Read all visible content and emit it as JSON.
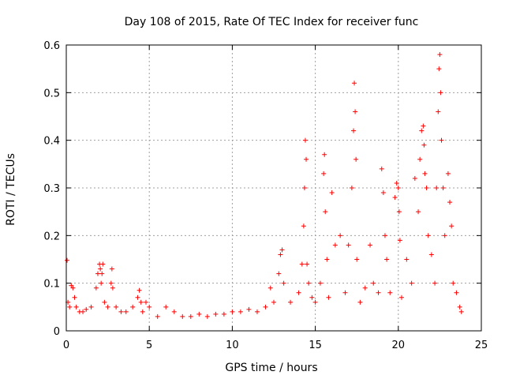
{
  "chart_data": {
    "type": "scatter",
    "title": "Day 108 of 2015, Rate Of TEC Index for receiver func",
    "xlabel": "GPS time / hours",
    "ylabel": "ROTI / TECUs",
    "xlim": [
      0,
      25
    ],
    "ylim": [
      0,
      0.6
    ],
    "x_ticks": [
      0,
      5,
      10,
      15,
      20,
      25
    ],
    "x_tick_labels": [
      "0",
      "5",
      "10",
      "15",
      "20",
      "25"
    ],
    "y_ticks": [
      0,
      0.1,
      0.2,
      0.3,
      0.4,
      0.5,
      0.6
    ],
    "y_tick_labels": [
      "0",
      "0.1",
      "0.2",
      "0.3",
      "0.4",
      "0.5",
      "0.6"
    ],
    "grid": true,
    "marker": "plus",
    "color": "#ff0000",
    "series": [
      {
        "x": [
          0.05,
          0.1,
          0.2,
          0.3,
          0.4,
          0.5,
          0.6,
          0.8,
          1.0,
          1.2,
          1.5,
          1.8,
          1.9,
          2.0,
          2.05,
          2.1,
          2.15,
          2.2,
          2.3,
          2.5,
          2.7,
          2.75,
          2.8,
          3.0,
          3.3,
          3.6,
          4.0,
          4.3,
          4.4,
          4.5,
          4.6,
          4.8,
          5.0,
          5.5,
          6.0,
          6.5,
          7.0,
          7.5,
          8.0,
          8.5,
          9.0,
          9.5,
          10.0,
          10.5,
          11.0,
          11.5,
          12.0,
          12.3,
          12.5,
          12.8,
          12.9,
          13.0,
          13.1,
          13.5,
          14.0,
          14.2,
          14.3,
          14.35,
          14.4,
          14.45,
          14.5,
          14.6,
          14.8,
          15.0,
          15.3,
          15.5,
          15.55,
          15.6,
          15.7,
          15.8,
          16.0,
          16.2,
          16.5,
          16.8,
          17.0,
          17.2,
          17.3,
          17.35,
          17.4,
          17.45,
          17.5,
          17.7,
          18.0,
          18.3,
          18.5,
          18.8,
          19.0,
          19.1,
          19.2,
          19.3,
          19.5,
          19.8,
          19.9,
          20.0,
          20.05,
          20.1,
          20.2,
          20.5,
          20.8,
          21.0,
          21.2,
          21.3,
          21.4,
          21.5,
          21.55,
          21.6,
          21.7,
          21.8,
          22.0,
          22.2,
          22.3,
          22.4,
          22.45,
          22.5,
          22.55,
          22.6,
          22.7,
          22.8,
          23.0,
          23.1,
          23.2,
          23.3,
          23.5,
          23.7,
          23.8
        ],
        "y": [
          0.148,
          0.06,
          0.05,
          0.095,
          0.09,
          0.07,
          0.05,
          0.04,
          0.04,
          0.045,
          0.05,
          0.09,
          0.12,
          0.14,
          0.13,
          0.1,
          0.12,
          0.14,
          0.06,
          0.05,
          0.1,
          0.13,
          0.09,
          0.05,
          0.04,
          0.04,
          0.05,
          0.07,
          0.085,
          0.06,
          0.04,
          0.06,
          0.05,
          0.03,
          0.05,
          0.04,
          0.03,
          0.03,
          0.035,
          0.03,
          0.035,
          0.035,
          0.04,
          0.04,
          0.045,
          0.04,
          0.05,
          0.09,
          0.06,
          0.12,
          0.16,
          0.17,
          0.1,
          0.06,
          0.08,
          0.14,
          0.22,
          0.3,
          0.4,
          0.36,
          0.14,
          0.1,
          0.07,
          0.06,
          0.1,
          0.33,
          0.37,
          0.25,
          0.15,
          0.07,
          0.29,
          0.18,
          0.2,
          0.08,
          0.18,
          0.3,
          0.42,
          0.52,
          0.46,
          0.36,
          0.15,
          0.06,
          0.09,
          0.18,
          0.1,
          0.08,
          0.34,
          0.29,
          0.2,
          0.15,
          0.08,
          0.28,
          0.31,
          0.3,
          0.25,
          0.19,
          0.07,
          0.15,
          0.1,
          0.32,
          0.25,
          0.36,
          0.42,
          0.43,
          0.39,
          0.33,
          0.3,
          0.2,
          0.16,
          0.1,
          0.3,
          0.46,
          0.55,
          0.58,
          0.5,
          0.4,
          0.3,
          0.2,
          0.33,
          0.27,
          0.22,
          0.1,
          0.08,
          0.05,
          0.04
        ]
      }
    ]
  }
}
